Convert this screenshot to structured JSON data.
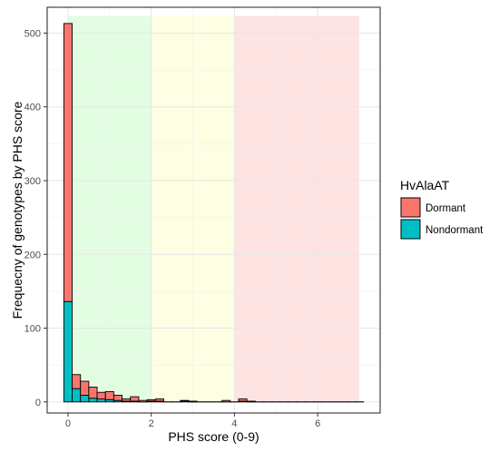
{
  "chart_data": {
    "type": "bar",
    "stacked": true,
    "xlabel": "PHS score (0-9)",
    "ylabel": "Frequecny of genotypes by PHS score",
    "xlim": [
      -0.5,
      7.5
    ],
    "ylim": [
      -15,
      535
    ],
    "x_ticks": [
      0,
      2,
      4,
      6
    ],
    "y_ticks": [
      0,
      100,
      200,
      300,
      400,
      500
    ],
    "x_tick_labels": [
      "0",
      "2",
      "4",
      "6"
    ],
    "y_tick_labels": [
      "0",
      "100",
      "200",
      "300",
      "400",
      "500"
    ],
    "bin_width": 0.2,
    "grid": true,
    "legend_position": "right",
    "legend": {
      "title": "HvAlaAT",
      "entries": [
        {
          "label": "Dormant",
          "color": "#F8766D"
        },
        {
          "label": "Nondormant",
          "color": "#00BFC4"
        }
      ]
    },
    "background_regions": [
      {
        "from": 0,
        "to": 2,
        "color": "#E3FDE3"
      },
      {
        "from": 2,
        "to": 4,
        "color": "#FEFEE3"
      },
      {
        "from": 4,
        "to": 7,
        "color": "#FEE3E3"
      }
    ],
    "series": [
      {
        "name": "Nondormant",
        "color": "#00BFC4",
        "x": [
          0.0,
          0.2,
          0.4,
          0.6,
          0.8,
          1.0,
          1.2,
          1.4,
          1.6,
          1.8,
          2.0,
          2.2,
          2.4,
          2.6,
          2.8,
          3.0,
          3.2,
          3.4,
          3.6,
          3.8,
          4.0,
          4.2,
          4.4,
          4.6,
          4.8,
          5.0,
          5.2,
          5.4,
          5.6,
          5.8,
          6.0,
          6.2,
          6.4,
          6.6,
          6.8,
          7.0
        ],
        "values": [
          136,
          18,
          9,
          5,
          4,
          3,
          2,
          1,
          1,
          0,
          1,
          1,
          0,
          0,
          1,
          0,
          0,
          0,
          0,
          0,
          0,
          1,
          0,
          0,
          0,
          0,
          0,
          0,
          0,
          0,
          0,
          0,
          0,
          0,
          0,
          0
        ]
      },
      {
        "name": "Dormant",
        "color": "#F8766D",
        "x": [
          0.0,
          0.2,
          0.4,
          0.6,
          0.8,
          1.0,
          1.2,
          1.4,
          1.6,
          1.8,
          2.0,
          2.2,
          2.4,
          2.6,
          2.8,
          3.0,
          3.2,
          3.4,
          3.6,
          3.8,
          4.0,
          4.2,
          4.4,
          4.6,
          4.8,
          5.0,
          5.2,
          5.4,
          5.6,
          5.8,
          6.0,
          6.2,
          6.4,
          6.6,
          6.8,
          7.0
        ],
        "values": [
          377,
          19,
          19,
          15,
          9,
          11,
          7,
          3,
          6,
          2,
          2,
          3,
          0,
          0,
          1,
          1,
          0,
          0,
          0,
          2,
          0,
          3,
          1,
          0,
          0,
          0,
          0,
          0,
          0,
          0,
          0,
          0,
          0,
          0,
          0,
          0
        ]
      }
    ]
  }
}
